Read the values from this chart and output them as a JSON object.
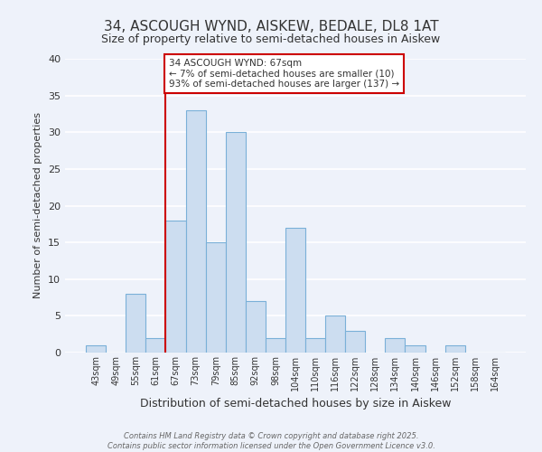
{
  "title": "34, ASCOUGH WYND, AISKEW, BEDALE, DL8 1AT",
  "subtitle": "Size of property relative to semi-detached houses in Aiskew",
  "xlabel": "Distribution of semi-detached houses by size in Aiskew",
  "ylabel": "Number of semi-detached properties",
  "categories": [
    "43sqm",
    "49sqm",
    "55sqm",
    "61sqm",
    "67sqm",
    "73sqm",
    "79sqm",
    "85sqm",
    "92sqm",
    "98sqm",
    "104sqm",
    "110sqm",
    "116sqm",
    "122sqm",
    "128sqm",
    "134sqm",
    "140sqm",
    "146sqm",
    "152sqm",
    "158sqm",
    "164sqm"
  ],
  "values": [
    1,
    0,
    8,
    2,
    18,
    33,
    15,
    30,
    7,
    2,
    17,
    2,
    5,
    3,
    0,
    2,
    1,
    0,
    1,
    0,
    0
  ],
  "bar_color": "#ccddf0",
  "bar_edge_color": "#7ab0d8",
  "highlight_x": "67sqm",
  "highlight_line_color": "#cc0000",
  "annotation_text": "34 ASCOUGH WYND: 67sqm\n← 7% of semi-detached houses are smaller (10)\n93% of semi-detached houses are larger (137) →",
  "annotation_box_color": "#ffffff",
  "annotation_box_edge_color": "#cc0000",
  "ylim": [
    0,
    40
  ],
  "yticks": [
    0,
    5,
    10,
    15,
    20,
    25,
    30,
    35,
    40
  ],
  "background_color": "#eef2fa",
  "grid_color": "#ffffff",
  "footer_line1": "Contains HM Land Registry data © Crown copyright and database right 2025.",
  "footer_line2": "Contains public sector information licensed under the Open Government Licence v3.0.",
  "title_fontsize": 11,
  "subtitle_fontsize": 9
}
